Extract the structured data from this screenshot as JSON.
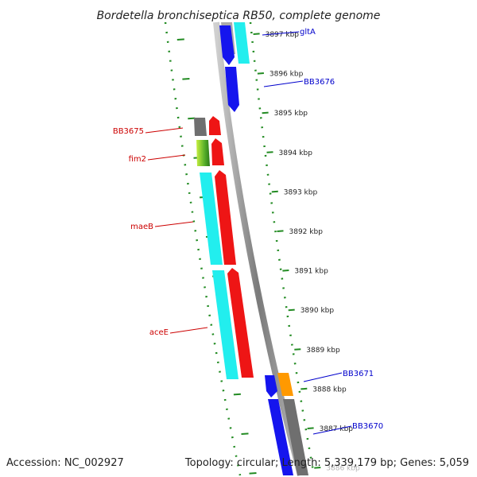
{
  "title": "Bordetella bronchiseptica RB50, complete genome",
  "accession_text": "Accession: NC_002927",
  "summary_text": "Topology: circular; Length: 5,339,179 bp; Genes: 5,059",
  "colors": {
    "backbone": "#888888",
    "tick": "#228B22",
    "label_forward": "#0000cc",
    "label_reverse": "#cc0000",
    "gene_blue": "#1515ee",
    "gene_cyan": "#22eeee",
    "gene_red": "#ee1515",
    "gene_gray": "#6f6f6f",
    "gene_orange": "#ff9900",
    "gene_green": "#7ccc22"
  },
  "ticks": [
    "3897 kbp",
    "3896 kbp",
    "3895 kbp",
    "3894 kbp",
    "3893 kbp",
    "3892 kbp",
    "3891 kbp",
    "3890 kbp",
    "3889 kbp",
    "3888 kbp",
    "3887 kbp",
    "3886 kbp"
  ],
  "gene_labels": {
    "right": [
      "gltA",
      "BB3676",
      "BB3671",
      "BB3670"
    ],
    "left": [
      "BB3675",
      "fim2",
      "maeB",
      "aceE"
    ]
  }
}
